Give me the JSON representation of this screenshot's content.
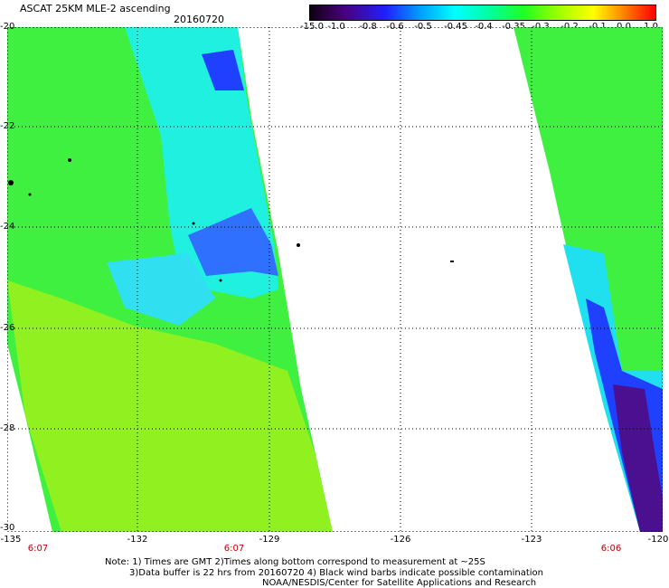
{
  "header": {
    "title": "ASCAT 25KM MLE-2 ascending",
    "date": "20160720"
  },
  "colorbar": {
    "labels": [
      "-15.0",
      "-1.0",
      "-0.8",
      "-0.6",
      "-0.5",
      "-0.45",
      "-0.4",
      "-0.35",
      "-0.3",
      "-0.2",
      "-0.1",
      "0.0",
      "1.0"
    ]
  },
  "axes": {
    "y_labels": [
      "-20",
      "-22",
      "-24",
      "-26",
      "-28",
      "-30"
    ],
    "x_labels": [
      "-135",
      "-132",
      "-129",
      "-126",
      "-123",
      "-120"
    ],
    "time_labels": [
      "6:07",
      "6:07",
      "6:06"
    ]
  },
  "colors": {
    "grid": "#000000",
    "time": "#c00000",
    "low": "#2020ff",
    "mid": "#20ff20",
    "high": "#a0ff00"
  },
  "notes": {
    "line1": "Note: 1) Times are GMT 2)Times along bottom correspond to measurement at ~25S",
    "line2": "3)Data buffer is 22 hrs from 20160720 4) Black wind barbs indicate possible contamination",
    "line3": "NOAA/NESDIS/Center for Satellite Applications and Research"
  }
}
